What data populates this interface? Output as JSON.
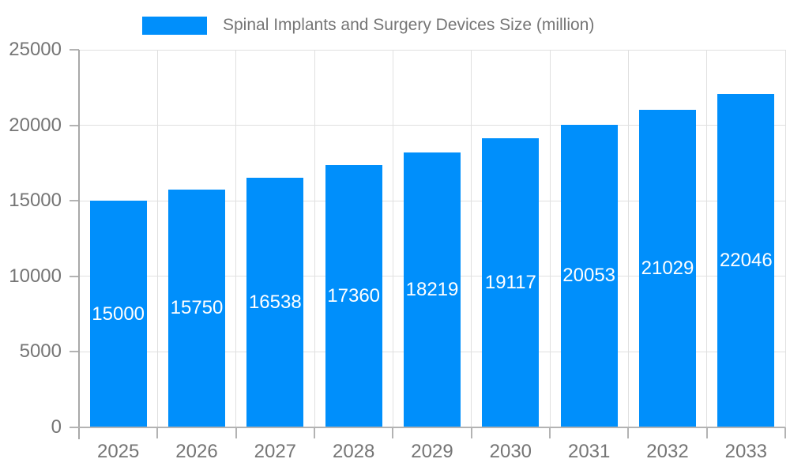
{
  "legend": {
    "label": "Spinal Implants and Surgery Devices Size (million)"
  },
  "chart_data": {
    "type": "bar",
    "title": "Spinal Implants and Surgery Devices Size (million)",
    "categories": [
      "2025",
      "2026",
      "2027",
      "2028",
      "2029",
      "2030",
      "2031",
      "2032",
      "2033"
    ],
    "values": [
      15000,
      15750,
      16538,
      17360,
      18219,
      19117,
      20053,
      21029,
      22046
    ],
    "xlabel": "",
    "ylabel": "",
    "ylim": [
      0,
      25000
    ],
    "yticks": [
      0,
      5000,
      10000,
      15000,
      20000,
      25000
    ],
    "grid": true,
    "legend_position": "top",
    "bar_labels_inside": true,
    "colors": {
      "bar": "#008FFB",
      "text": "#757575",
      "bar_label": "#ffffff",
      "grid": "#e0e0e0",
      "axis": "#a8a8a8",
      "tick": "#b3b3b3"
    }
  }
}
